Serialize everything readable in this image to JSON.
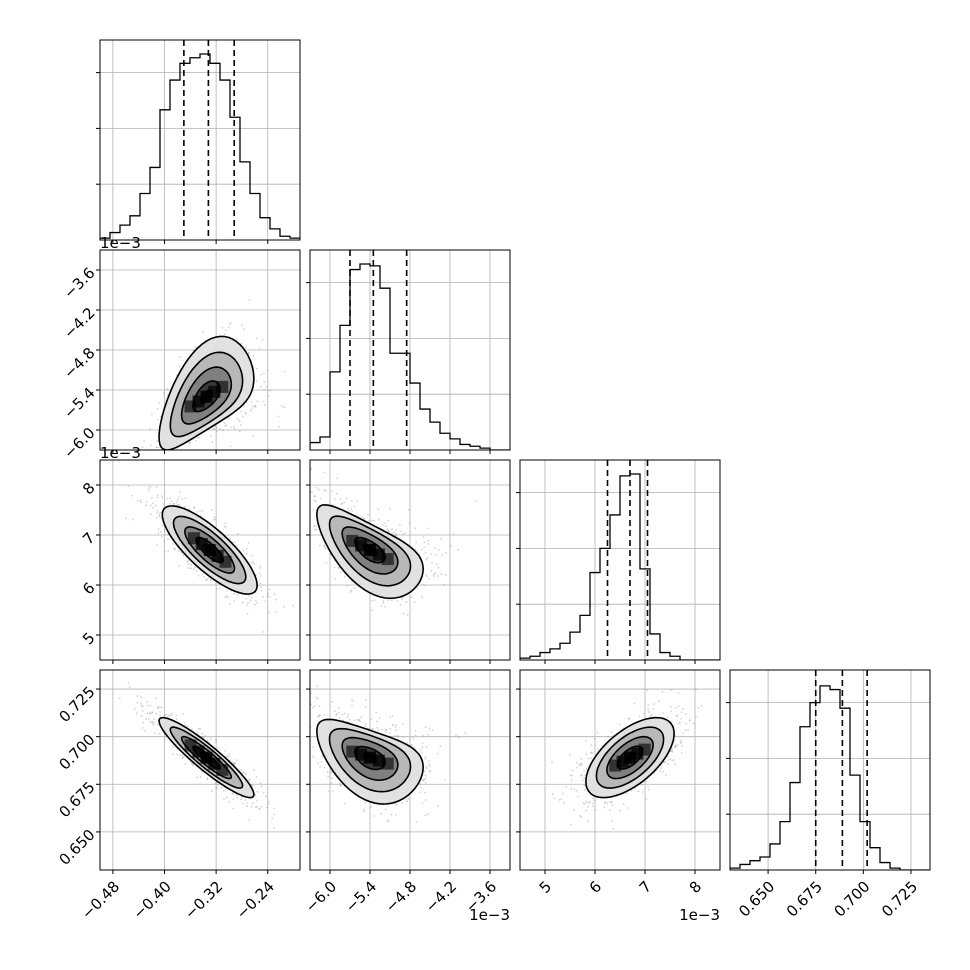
{
  "figure": {
    "background": "#ffffff",
    "axes_color": "#000000",
    "grid_color": "#b0b0b0",
    "hist_color": "#000000",
    "scatter_color": "#808080",
    "density_dark": "#000000",
    "density_light": "#ffffff"
  },
  "chart_data": {
    "type": "corner",
    "grid": true,
    "variables": [
      {
        "id": "p0",
        "lim": [
          -0.5,
          -0.19
        ],
        "ticks": [
          -0.48,
          -0.4,
          -0.32,
          -0.24
        ],
        "tick_labels": [
          "−0.48",
          "−0.40",
          "−0.32",
          "−0.24"
        ],
        "offset_label": "",
        "quantiles": [
          -0.37,
          -0.332,
          -0.292
        ],
        "hist": [
          0.01,
          0.04,
          0.08,
          0.13,
          0.25,
          0.39,
          0.7,
          0.86,
          0.95,
          0.98,
          1.0,
          0.95,
          0.86,
          0.66,
          0.42,
          0.25,
          0.12,
          0.06,
          0.02,
          0.01
        ]
      },
      {
        "id": "p1",
        "lim": [
          -6.3,
          -3.3
        ],
        "ticks": [
          -6.0,
          -5.4,
          -4.8,
          -4.2,
          -3.6
        ],
        "tick_labels": [
          "−6.0",
          "−5.4",
          "−4.8",
          "−4.2",
          "−3.6"
        ],
        "offset_label": "1e−3",
        "quantiles": [
          -5.7,
          -5.35,
          -4.85
        ],
        "hist": [
          0.04,
          0.07,
          0.42,
          0.67,
          0.97,
          1.0,
          0.99,
          0.87,
          0.52,
          0.52,
          0.36,
          0.22,
          0.15,
          0.09,
          0.06,
          0.03,
          0.02,
          0.01,
          0.0,
          0.0
        ]
      },
      {
        "id": "p2",
        "lim": [
          4.5,
          8.5
        ],
        "ticks": [
          5,
          6,
          7,
          8
        ],
        "tick_labels": [
          "5",
          "6",
          "7",
          "8"
        ],
        "offset_label": "1e−3",
        "quantiles": [
          6.25,
          6.7,
          7.05
        ],
        "hist": [
          0.01,
          0.02,
          0.04,
          0.06,
          0.09,
          0.15,
          0.24,
          0.47,
          0.6,
          0.78,
          0.99,
          1.0,
          0.49,
          0.14,
          0.04,
          0.02,
          0.0,
          0.0,
          0.0,
          0.0
        ]
      },
      {
        "id": "p3",
        "lim": [
          0.63,
          0.735
        ],
        "ticks": [
          0.65,
          0.675,
          0.7,
          0.725
        ],
        "tick_labels": [
          "0.650",
          "0.675",
          "0.700",
          "0.725"
        ],
        "offset_label": "",
        "quantiles": [
          0.675,
          0.689,
          0.702
        ],
        "hist": [
          0.01,
          0.03,
          0.05,
          0.07,
          0.14,
          0.26,
          0.47,
          0.77,
          0.9,
          0.99,
          0.97,
          0.87,
          0.51,
          0.26,
          0.12,
          0.04,
          0.01,
          0.0,
          0.0,
          0.0
        ]
      }
    ],
    "pairs": [
      {
        "row": 1,
        "col": 0,
        "mean": [
          -0.335,
          -5.5
        ],
        "sd": [
          0.035,
          0.38
        ],
        "rho": 0.55,
        "bend": -0.2
      },
      {
        "row": 2,
        "col": 0,
        "mean": [
          -0.33,
          6.7
        ],
        "sd": [
          0.035,
          0.42
        ],
        "rho": -0.8,
        "bend": 0.0
      },
      {
        "row": 2,
        "col": 1,
        "mean": [
          -5.4,
          6.7
        ],
        "sd": [
          0.38,
          0.42
        ],
        "rho": -0.62,
        "bend": 0.18
      },
      {
        "row": 3,
        "col": 0,
        "mean": [
          -0.335,
          0.689
        ],
        "sd": [
          0.035,
          0.01
        ],
        "rho": -0.92,
        "bend": 0.0
      },
      {
        "row": 3,
        "col": 1,
        "mean": [
          -5.4,
          0.689
        ],
        "sd": [
          0.38,
          0.01
        ],
        "rho": -0.45,
        "bend": 0.2
      },
      {
        "row": 3,
        "col": 2,
        "mean": [
          6.7,
          0.689
        ],
        "sd": [
          0.42,
          0.01
        ],
        "rho": 0.6,
        "bend": 0.0
      }
    ]
  }
}
